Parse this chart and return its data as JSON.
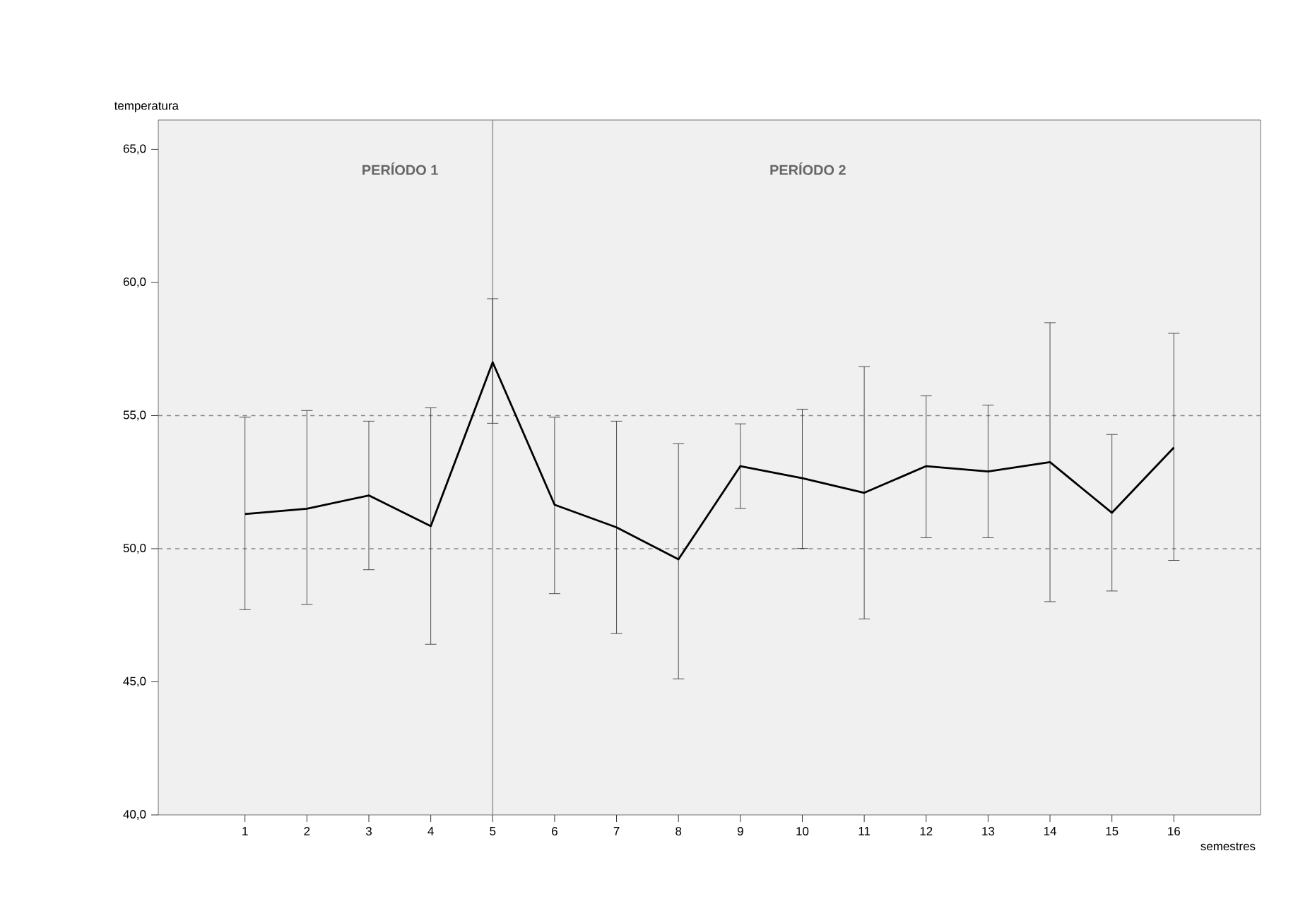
{
  "chart_data": {
    "type": "line",
    "xlabel": "semestres",
    "ylabel": "temperatura",
    "x": [
      1,
      2,
      3,
      4,
      5,
      6,
      7,
      8,
      9,
      10,
      11,
      12,
      13,
      14,
      15,
      16
    ],
    "values": [
      51.3,
      51.5,
      52.0,
      50.85,
      57.0,
      51.65,
      50.8,
      49.6,
      53.1,
      52.65,
      52.1,
      53.1,
      52.9,
      53.25,
      51.35,
      53.8
    ],
    "errors": [
      [
        47.7,
        54.95
      ],
      [
        47.9,
        55.2
      ],
      [
        49.2,
        54.8
      ],
      [
        46.4,
        55.3
      ],
      [
        54.7,
        59.4
      ],
      [
        48.3,
        54.95
      ],
      [
        46.8,
        54.8
      ],
      [
        45.1,
        53.95
      ],
      [
        51.5,
        54.7
      ],
      [
        50.0,
        55.25
      ],
      [
        47.35,
        56.85
      ],
      [
        50.4,
        55.75
      ],
      [
        50.4,
        55.4
      ],
      [
        48.0,
        58.5
      ],
      [
        48.4,
        54.3
      ],
      [
        49.55,
        58.1
      ]
    ],
    "color": "#000000",
    "marker": "none",
    "line_style": "solid",
    "xlim": [
      -0.4,
      17.4
    ],
    "xticks": [
      1,
      2,
      3,
      4,
      5,
      6,
      7,
      8,
      9,
      10,
      11,
      12,
      13,
      14,
      15,
      16
    ],
    "ylim": [
      40,
      66.1
    ],
    "yticks": [
      {
        "value": 40,
        "label": "40,0"
      },
      {
        "value": 45,
        "label": "45,0"
      },
      {
        "value": 50,
        "label": "50,0"
      },
      {
        "value": 55,
        "label": "55,0"
      },
      {
        "value": 60,
        "label": "60,0"
      },
      {
        "value": 65,
        "label": "65,0"
      }
    ],
    "ref_lines": [
      {
        "axis": "x",
        "value": 5,
        "color": "#999999",
        "line_style": "solid"
      },
      {
        "axis": "y",
        "value": 55,
        "color": "#888888",
        "line_style": "dashed"
      },
      {
        "axis": "y",
        "value": 50,
        "color": "#888888",
        "line_style": "dashed"
      }
    ],
    "annotations": [
      "PERÍODO 1",
      "PERÍODO 2"
    ]
  }
}
